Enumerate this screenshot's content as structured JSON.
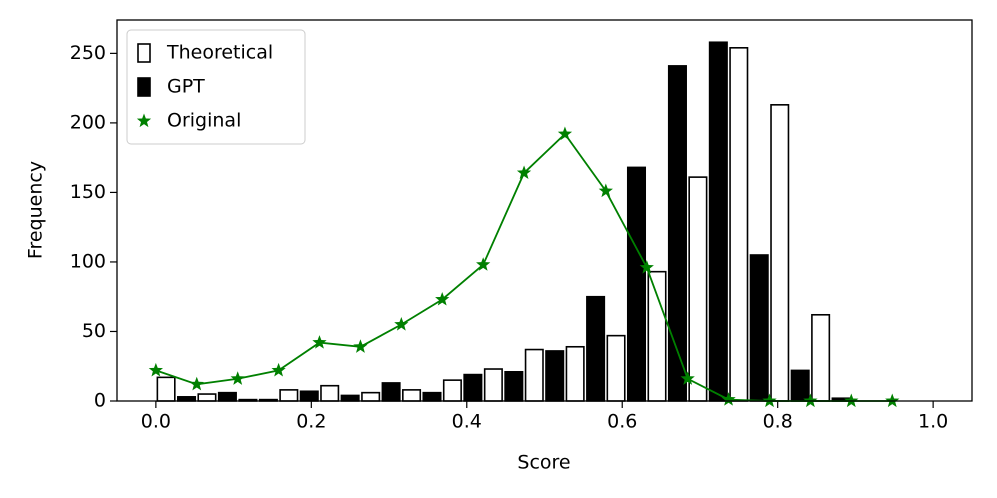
{
  "chart_data": {
    "type": "bar",
    "xlabel": "Score",
    "ylabel": "Frequency",
    "x": [
      0.0,
      0.0526,
      0.1053,
      0.1579,
      0.2105,
      0.2632,
      0.3158,
      0.3684,
      0.4211,
      0.4737,
      0.5263,
      0.5789,
      0.6316,
      0.6842,
      0.7368,
      0.7895,
      0.8421,
      0.8947,
      0.9474
    ],
    "series": [
      {
        "name": "Theoretical",
        "type": "bar",
        "color": "#ffffff",
        "edgecolor": "#000000",
        "values": [
          17,
          5,
          1,
          8,
          11,
          6,
          8,
          15,
          23,
          37,
          39,
          47,
          93,
          161,
          254,
          213,
          62,
          0,
          0
        ]
      },
      {
        "name": "GPT",
        "type": "bar",
        "color": "#000000",
        "edgecolor": "#000000",
        "values": [
          3,
          6,
          1,
          7,
          4,
          13,
          6,
          19,
          21,
          36,
          75,
          168,
          241,
          258,
          105,
          22,
          2,
          0,
          0
        ]
      },
      {
        "name": "Original",
        "type": "line",
        "marker": "star",
        "color": "#008000",
        "values": [
          22,
          12,
          16,
          22,
          42,
          39,
          55,
          73,
          98,
          164,
          192,
          151,
          96,
          16,
          1,
          0,
          0,
          0,
          0
        ]
      }
    ],
    "xlim": [
      -0.05,
      1.05
    ],
    "xticks": [
      {
        "value": 0,
        "label": "0.0"
      },
      {
        "value": 0.2,
        "label": "0.2"
      },
      {
        "value": 0.4,
        "label": "0.4"
      },
      {
        "value": 0.6,
        "label": "0.6"
      },
      {
        "value": 0.8,
        "label": "0.8"
      },
      {
        "value": 1,
        "label": "1.0"
      }
    ],
    "ylim": [
      0,
      274
    ],
    "yticks": [
      0,
      50,
      100,
      150,
      200,
      250
    ],
    "grid": false,
    "legend": "upper-left"
  }
}
